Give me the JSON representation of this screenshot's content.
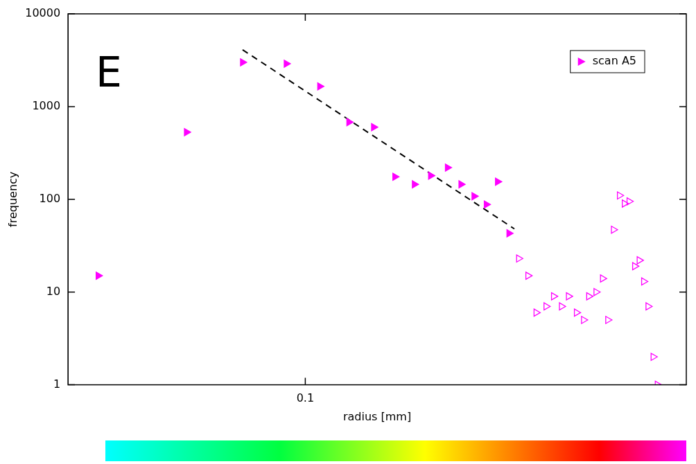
{
  "chart_data": {
    "type": "scatter",
    "x_label": "radius [mm]",
    "y_label": "frequency",
    "annotations": [
      "E"
    ],
    "log": true,
    "grid": false,
    "legend": "top-right",
    "xlim": [
      0.033,
      0.593
    ],
    "xticks": [
      0.1
    ],
    "ylim": [
      1,
      10000
    ],
    "yticks": [
      1,
      10,
      100,
      1000,
      10000
    ],
    "series": [
      {
        "name": "scan A5",
        "color": "#ff00ff",
        "marker": "triangle",
        "x": [
          0.038,
          0.0574,
          0.0746,
          0.0915,
          0.107,
          0.1226,
          0.1376,
          0.152,
          0.1665,
          0.1796,
          0.1943,
          0.207,
          0.22,
          0.233,
          0.2455,
          0.259
        ],
        "values": [
          15,
          530,
          3000,
          2900,
          1650,
          680,
          600,
          175,
          145,
          180,
          220,
          145,
          108,
          88,
          155,
          43
        ]
      },
      {
        "color": "#ff00ff",
        "marker": "triangle-open",
        "x": [
          0.271,
          0.283,
          0.294,
          0.308,
          0.319,
          0.331,
          0.342,
          0.355,
          0.367,
          0.376,
          0.389,
          0.401,
          0.411,
          0.422,
          0.434,
          0.444,
          0.454,
          0.466,
          0.476,
          0.486,
          0.496,
          0.508,
          0.518
        ],
        "values": [
          23,
          15,
          6,
          7,
          9,
          7,
          9,
          6,
          5,
          9,
          10,
          14,
          5,
          47,
          110,
          90,
          95,
          19,
          22,
          13,
          7,
          2,
          1
        ]
      },
      {
        "type": "line",
        "color": "#000000",
        "line_style": "dashed",
        "x": [
          0.0746,
          0.2656
        ],
        "values": [
          4100,
          48
        ]
      }
    ]
  }
}
